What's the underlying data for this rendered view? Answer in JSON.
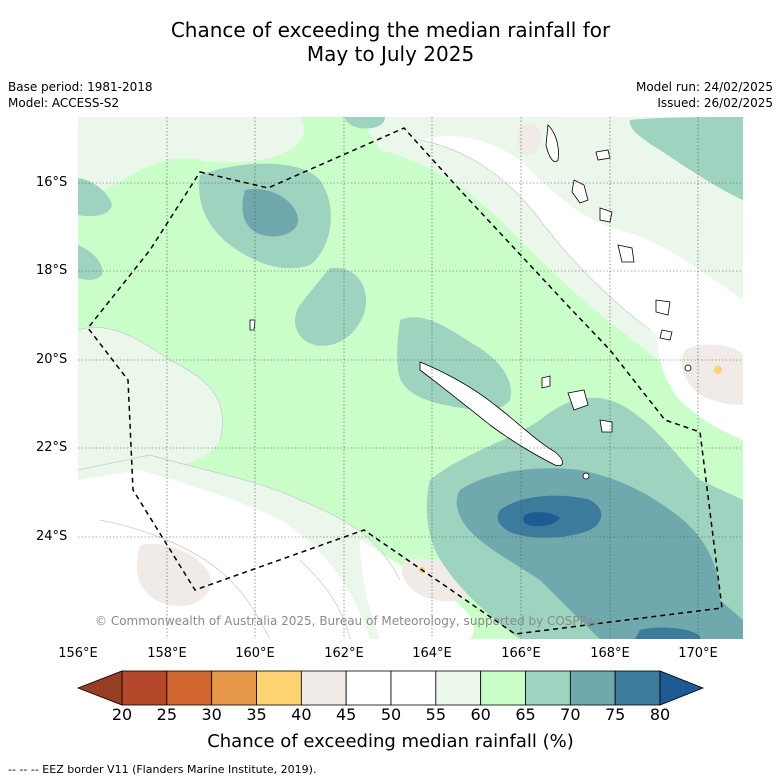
{
  "title_line1": "Chance of exceeding the median rainfall for",
  "title_line2": "May to July 2025",
  "base_period": "Base period: 1981-2018",
  "model": "Model: ACCESS-S2",
  "model_run": "Model run: 24/02/2025",
  "issued": "Issued: 26/02/2025",
  "lat_labels": [
    "16°S",
    "18°S",
    "20°S",
    "22°S",
    "24°S"
  ],
  "lon_labels": [
    "156°E",
    "158°E",
    "160°E",
    "162°E",
    "164°E",
    "166°E",
    "168°E",
    "170°E"
  ],
  "copyright": "© Commonwealth of Australia 2025, Bureau of Meteorology, supported by COSPPac",
  "colorbar": {
    "ticks": [
      "20",
      "25",
      "30",
      "35",
      "40",
      "45",
      "50",
      "55",
      "60",
      "65",
      "70",
      "75",
      "80"
    ],
    "colors": [
      "#b5482a",
      "#d0652f",
      "#e6974a",
      "#fdd371",
      "#f0ebe6",
      "#ffffff",
      "#ffffff",
      "#ecf7ec",
      "#caffca",
      "#9dd3bf",
      "#70a9ad",
      "#3c7b9c"
    ],
    "under_color": "#963d24",
    "over_color": "#1e5b94",
    "title": "Chance of exceeding median rainfall (%)"
  },
  "footnote": "--  --  -- EEZ border V11 (Flanders Marine Institute, 2019)."
}
